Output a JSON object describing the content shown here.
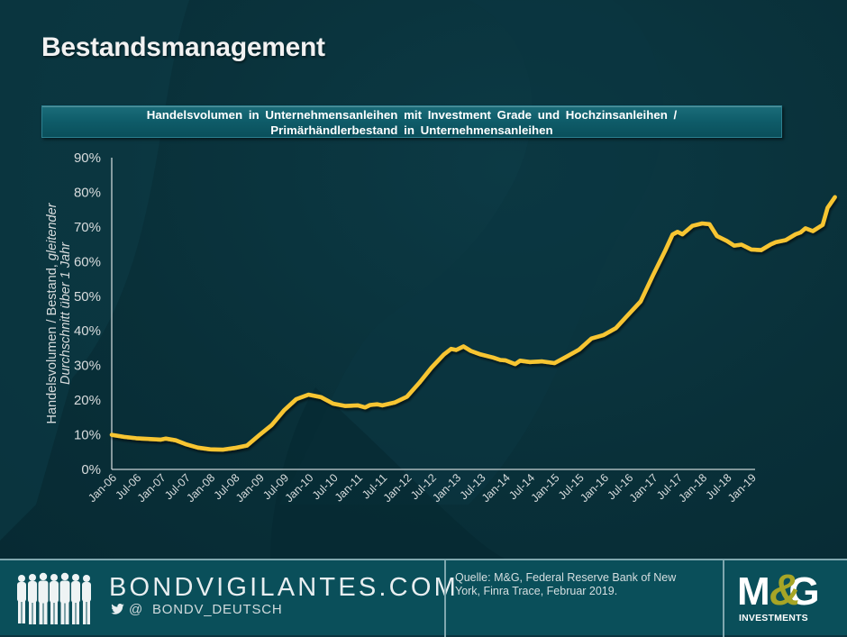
{
  "page": {
    "title": "Bestandsmanagement"
  },
  "chart_header": {
    "line1": "Handelsvolumen in Unternehmensanleihen mit Investment Grade und Hochzinsanleihen /",
    "line2": "Primärhändlerbestand in Unternehmensanleihen"
  },
  "chart_data": {
    "type": "line",
    "title": "Handelsvolumen in Unternehmensanleihen mit Investment Grade und Hochzinsanleihen / Primärhändlerbestand in Unternehmensanleihen",
    "xlabel": "",
    "ylabel": "Handelsvolumen / Bestand, gleitender Durchschnitt über 1 Jahr",
    "ylabel_line1_normal": "Handelsvolumen  / Bestand, ",
    "ylabel_line1_italic": "gleitender",
    "ylabel_line2_italic": "Durchschnitt über 1 Jahr",
    "ylim": [
      0,
      90
    ],
    "yticks": [
      "0%",
      "10%",
      "20%",
      "30%",
      "40%",
      "50%",
      "60%",
      "70%",
      "80%",
      "90%"
    ],
    "grid": false,
    "legend": "none",
    "line_color": "#f7c531",
    "categories": [
      "Jan-06",
      "Jul-06",
      "Jan-07",
      "Jul-07",
      "Jan-08",
      "Jul-08",
      "Jan-09",
      "Jul-09",
      "Jan-10",
      "Jul-10",
      "Jan-11",
      "Jul-11",
      "Jan-12",
      "Jul-12",
      "Jan-13",
      "Jul-13",
      "Jan-14",
      "Jul-14",
      "Jan-15",
      "Jul-15",
      "Jan-16",
      "Jul-16",
      "Jan-17",
      "Jul-17",
      "Jan-18",
      "Jul-18",
      "Jan-19"
    ],
    "series": [
      {
        "name": "Handelsvolumen / Bestand",
        "values": [
          10.0,
          9.0,
          8.6,
          7.3,
          5.8,
          6.2,
          9.9,
          17.0,
          21.6,
          19.0,
          18.5,
          18.5,
          21.0,
          29.4,
          35.0,
          32.3,
          31.0,
          30.7,
          34.6,
          38.8,
          44.7,
          63.2,
          71.0,
          66.0,
          63.5,
          68.4,
          78.6
        ]
      }
    ],
    "detail_points": [
      [
        0,
        10.0
      ],
      [
        0.5,
        9.4
      ],
      [
        1,
        9.0
      ],
      [
        1.5,
        8.8
      ],
      [
        2,
        8.6
      ],
      [
        2.2,
        8.9
      ],
      [
        2.6,
        8.4
      ],
      [
        3,
        7.3
      ],
      [
        3.5,
        6.3
      ],
      [
        4,
        5.8
      ],
      [
        4.5,
        5.7
      ],
      [
        5,
        6.2
      ],
      [
        5.5,
        6.9
      ],
      [
        6,
        9.9
      ],
      [
        6.5,
        12.8
      ],
      [
        7,
        17.0
      ],
      [
        7.5,
        20.3
      ],
      [
        8,
        21.6
      ],
      [
        8.5,
        20.9
      ],
      [
        9,
        19.0
      ],
      [
        9.5,
        18.3
      ],
      [
        10,
        18.5
      ],
      [
        10.3,
        17.9
      ],
      [
        10.5,
        18.6
      ],
      [
        10.8,
        18.8
      ],
      [
        11,
        18.5
      ],
      [
        11.5,
        19.3
      ],
      [
        12,
        21.0
      ],
      [
        12.5,
        25.0
      ],
      [
        13,
        29.4
      ],
      [
        13.5,
        33.2
      ],
      [
        13.8,
        34.8
      ],
      [
        14,
        34.5
      ],
      [
        14.3,
        35.5
      ],
      [
        14.6,
        34.2
      ],
      [
        15,
        33.2
      ],
      [
        15.5,
        32.3
      ],
      [
        15.8,
        31.6
      ],
      [
        16,
        31.5
      ],
      [
        16.4,
        30.4
      ],
      [
        16.6,
        31.4
      ],
      [
        17,
        31.0
      ],
      [
        17.5,
        31.2
      ],
      [
        18,
        30.7
      ],
      [
        18.5,
        32.6
      ],
      [
        19,
        34.6
      ],
      [
        19.5,
        37.8
      ],
      [
        20,
        38.8
      ],
      [
        20.5,
        40.8
      ],
      [
        21,
        44.7
      ],
      [
        21.5,
        48.5
      ],
      [
        22,
        56.0
      ],
      [
        22.5,
        63.2
      ],
      [
        22.8,
        67.8
      ],
      [
        23,
        68.6
      ],
      [
        23.2,
        67.9
      ],
      [
        23.6,
        70.3
      ],
      [
        24,
        71.0
      ],
      [
        24.3,
        70.8
      ],
      [
        24.6,
        67.4
      ],
      [
        25,
        66.0
      ],
      [
        25.3,
        64.6
      ],
      [
        25.6,
        64.9
      ],
      [
        26,
        63.5
      ],
      [
        26.4,
        63.3
      ],
      [
        26.8,
        65.0
      ],
      [
        27,
        65.6
      ],
      [
        27.4,
        66.2
      ],
      [
        27.8,
        67.9
      ],
      [
        28,
        68.4
      ],
      [
        28.2,
        69.6
      ],
      [
        28.5,
        68.8
      ],
      [
        28.9,
        70.6
      ],
      [
        29.1,
        75.5
      ],
      [
        29.4,
        78.6
      ]
    ]
  },
  "footer": {
    "brand": "BONDVIGILANTES.COM",
    "handle_prefix": "@",
    "handle": "BONDV_DEUTSCH",
    "source_line1": "Quelle: M&G, Federal Reserve Bank of New",
    "source_line2": "York, Finra Trace, Februar 2019.",
    "logo_main": "M&G",
    "logo_sub": "INVESTMENTS"
  },
  "colors": {
    "background": "#093039",
    "footer": "#0a4f5a",
    "line": "#f7c531",
    "title_box": "#0f5d6a",
    "logo_accent": "#a7a526"
  }
}
